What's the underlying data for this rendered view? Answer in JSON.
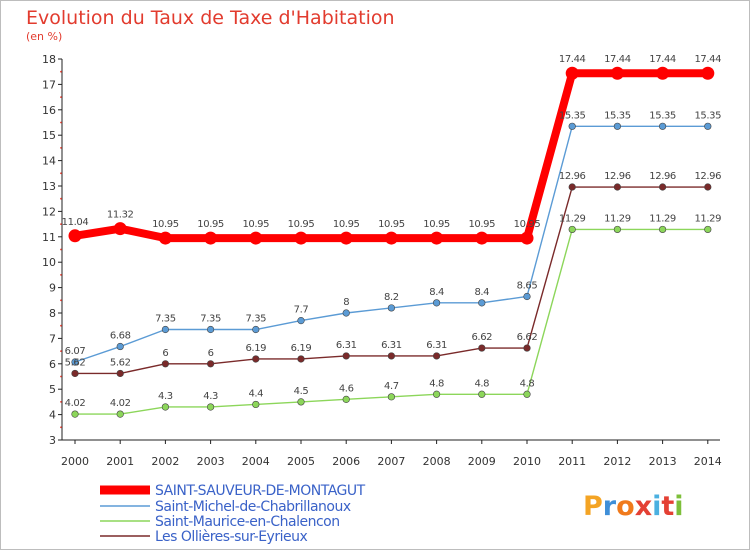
{
  "title": "Evolution du Taux de Taxe d'Habitation",
  "subtitle": "(en %)",
  "logo": {
    "text": "Proxiti",
    "letters": [
      "P",
      "r",
      "o",
      "x",
      "i",
      "t",
      "i"
    ],
    "colors": [
      "#f4a424",
      "#3f8fd8",
      "#f07a1c",
      "#e44034",
      "#4bb0e0",
      "#e44034",
      "#7dbf3a"
    ]
  },
  "chart_data": {
    "type": "line",
    "title": "Evolution du Taux de Taxe d'Habitation",
    "ylabel": "(en %)",
    "xlabel": "",
    "x": [
      "2000",
      "2001",
      "2002",
      "2003",
      "2004",
      "2005",
      "2006",
      "2007",
      "2008",
      "2009",
      "2010",
      "2011",
      "2012",
      "2013",
      "2014"
    ],
    "ylim": [
      3,
      18
    ],
    "yticks": [
      "3",
      "4",
      "5",
      "6",
      "7",
      "8",
      "9",
      "10",
      "11",
      "12",
      "13",
      "14",
      "15",
      "16",
      "17",
      "18"
    ],
    "grid": false,
    "legend_position": "bottom-left",
    "series": [
      {
        "name": "SAINT-SAUVEUR-DE-MONTAGUT",
        "color": "#ff0000",
        "emphasis": true,
        "values": [
          11.04,
          11.32,
          10.95,
          10.95,
          10.95,
          10.95,
          10.95,
          10.95,
          10.95,
          10.95,
          10.95,
          17.44,
          17.44,
          17.44,
          17.44
        ],
        "labels": [
          "11.04",
          "11.32",
          "10.95",
          "10.95",
          "10.95",
          "10.95",
          "10.95",
          "10.95",
          "10.95",
          "10.95",
          "10.95",
          "17.44",
          "17.44",
          "17.44",
          "17.44"
        ]
      },
      {
        "name": "Saint-Michel-de-Chabrillanoux",
        "color": "#5b9bd5",
        "values": [
          6.07,
          6.68,
          7.35,
          7.35,
          7.35,
          7.7,
          8,
          8.2,
          8.4,
          8.4,
          8.65,
          15.35,
          15.35,
          15.35,
          15.35
        ],
        "labels": [
          "6.07",
          "6.68",
          "7.35",
          "7.35",
          "7.35",
          "7.7",
          "8",
          "8.2",
          "8.4",
          "8.4",
          "8.65",
          "15.35",
          "15.35",
          "15.35",
          "15.35"
        ]
      },
      {
        "name": "Saint-Maurice-en-Chalencon",
        "color": "#8cd65a",
        "values": [
          4.02,
          4.02,
          4.3,
          4.3,
          4.4,
          4.5,
          4.6,
          4.7,
          4.8,
          4.8,
          4.8,
          11.29,
          11.29,
          11.29,
          11.29
        ],
        "labels": [
          "4.02",
          "4.02",
          "4.3",
          "4.3",
          "4.4",
          "4.5",
          "4.6",
          "4.7",
          "4.8",
          "4.8",
          "4.8",
          "11.29",
          "11.29",
          "11.29",
          "11.29"
        ]
      },
      {
        "name": "Les Ollières-sur-Eyrieux",
        "color": "#7a2a2a",
        "values": [
          5.62,
          5.62,
          6,
          6,
          6.19,
          6.19,
          6.31,
          6.31,
          6.31,
          6.62,
          6.62,
          12.96,
          12.96,
          12.96,
          12.96
        ],
        "labels": [
          "5.62",
          "5.62",
          "6",
          "6",
          "6.19",
          "6.19",
          "6.31",
          "6.31",
          "6.31",
          "6.62",
          "6.62",
          "12.96",
          "12.96",
          "12.96",
          "12.96"
        ]
      }
    ]
  }
}
